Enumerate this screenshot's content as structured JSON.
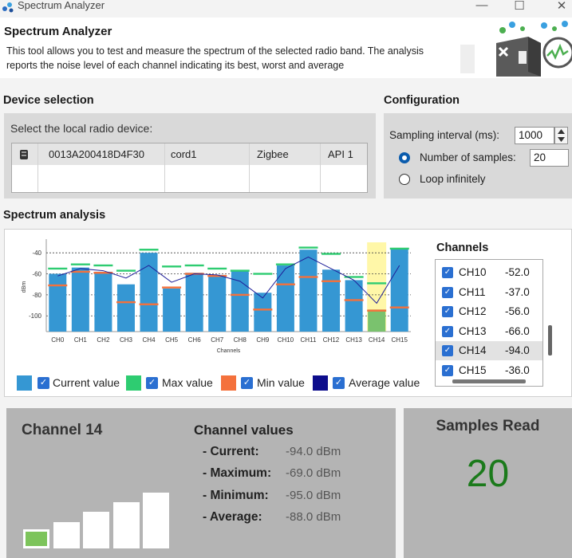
{
  "window": {
    "title": "Spectrum Analyzer",
    "minimize": "—",
    "maximize": "☐",
    "close": "✕"
  },
  "header": {
    "title": "Spectrum Analyzer",
    "description": "This tool allows you to test and measure the spectrum of the selected radio band. The analysis reports the noise level of each channel indicating its best, worst and average"
  },
  "device_selection": {
    "title": "Device selection",
    "prompt": "Select the local radio device:",
    "device": {
      "address": "0013A200418D4F30",
      "name": "cord1",
      "protocol": "Zigbee",
      "mode": "API 1"
    }
  },
  "configuration": {
    "title": "Configuration",
    "interval_label": "Sampling interval (ms):",
    "interval_value": "1000",
    "samples_label": "Number of samples:",
    "samples_value": "20",
    "loop_label": "Loop infinitely",
    "selected_mode": "samples"
  },
  "spectrum": {
    "title": "Spectrum analysis",
    "channels_title": "Channels",
    "channel_list": [
      {
        "name": "CH10",
        "value": "-52.0"
      },
      {
        "name": "CH11",
        "value": "-37.0"
      },
      {
        "name": "CH12",
        "value": "-56.0"
      },
      {
        "name": "CH13",
        "value": "-66.0"
      },
      {
        "name": "CH14",
        "value": "-94.0",
        "selected": true
      },
      {
        "name": "CH15",
        "value": "-36.0"
      }
    ],
    "legend": {
      "current": "Current value",
      "max": "Max value",
      "min": "Min value",
      "average": "Average value"
    }
  },
  "chart_data": {
    "type": "bar",
    "xlabel": "Channels",
    "ylabel": "dBm",
    "ylim": [
      -115,
      -30
    ],
    "yticks": [
      -40,
      -60,
      -80,
      -100
    ],
    "categories": [
      "CH0",
      "CH1",
      "CH2",
      "CH3",
      "CH4",
      "CH5",
      "CH6",
      "CH7",
      "CH8",
      "CH9",
      "CH10",
      "CH11",
      "CH12",
      "CH13",
      "CH14",
      "CH15"
    ],
    "series": [
      {
        "name": "Current value",
        "color": "#3597d3",
        "values": [
          -60,
          -54,
          -58,
          -70,
          -40,
          -74,
          -59,
          -61,
          -57,
          -78,
          -52,
          -37,
          -56,
          -66,
          -94,
          -36
        ]
      },
      {
        "name": "Max value",
        "color": "#2ecc71",
        "values": [
          -55,
          -51,
          -52,
          -57,
          -37,
          -53,
          -52,
          -55,
          -57,
          -60,
          -51,
          -35,
          -41,
          -63,
          -69,
          -36
        ]
      },
      {
        "name": "Min value",
        "color": "#f4713c",
        "values": [
          -71,
          -58,
          -59,
          -87,
          -89,
          -73,
          -60,
          -62,
          -80,
          -94,
          -70,
          -63,
          -67,
          -85,
          -95,
          -92
        ]
      },
      {
        "name": "Average value",
        "color": "#1f1f99",
        "values": [
          -62,
          -55,
          -57,
          -64,
          -52,
          -68,
          -60,
          -61,
          -67,
          -83,
          -55,
          -44,
          -55,
          -66,
          -88,
          -52
        ]
      }
    ],
    "highlighted_category": "CH14",
    "grid": "dotted"
  },
  "channel_detail": {
    "title": "Channel 14",
    "values_title": "Channel values",
    "current_label": "- Current:",
    "current_value": "-94.0 dBm",
    "max_label": "- Maximum:",
    "max_value": "-69.0 dBm",
    "min_label": "- Minimum:",
    "min_value": "-95.0 dBm",
    "avg_label": "- Average:",
    "avg_value": "-88.0 dBm",
    "signal_level": 1,
    "signal_levels_total": 5
  },
  "samples": {
    "title": "Samples Read",
    "value": "20"
  }
}
